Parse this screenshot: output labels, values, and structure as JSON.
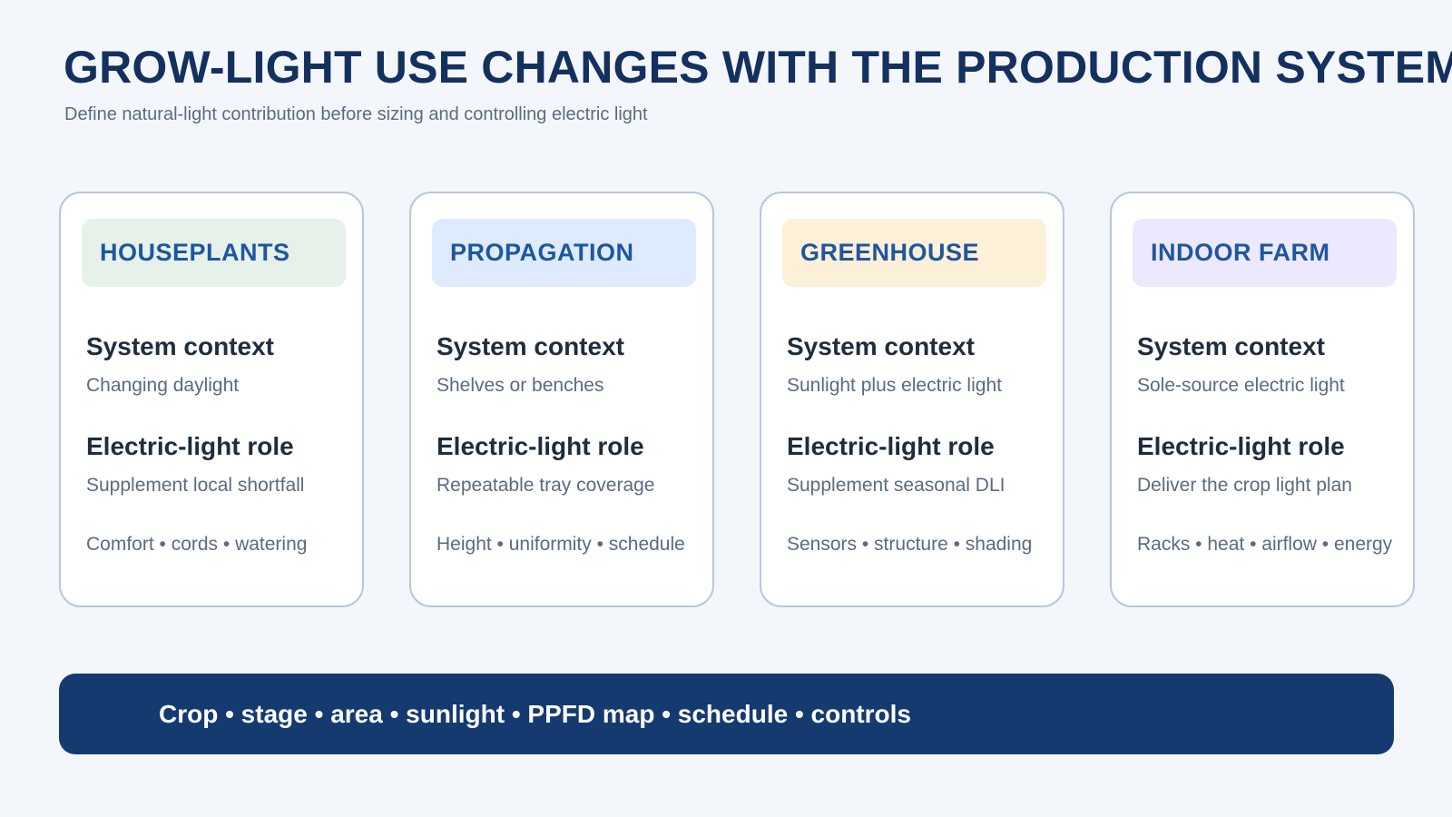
{
  "title": "GROW-LIGHT USE CHANGES WITH THE PRODUCTION SYSTEM",
  "subtitle": "Define natural-light contribution before sizing and controlling electric light",
  "cards": [
    {
      "header": "HOUSEPLANTS",
      "header_bg": "#e6f1e9",
      "context_heading": "System context",
      "context_text": "Changing daylight",
      "role_heading": "Electric-light role",
      "role_text": "Supplement local shortfall",
      "tags": "Comfort • cords • watering"
    },
    {
      "header": "PROPAGATION",
      "header_bg": "#deebff",
      "context_heading": "System context",
      "context_text": "Shelves or benches",
      "role_heading": "Electric-light role",
      "role_text": "Repeatable tray coverage",
      "tags": "Height • uniformity • schedule"
    },
    {
      "header": "GREENHOUSE",
      "header_bg": "#fdf0d8",
      "context_heading": "System context",
      "context_text": "Sunlight plus electric light",
      "role_heading": "Electric-light role",
      "role_text": "Supplement seasonal DLI",
      "tags": "Sensors • structure • shading"
    },
    {
      "header": "INDOOR FARM",
      "header_bg": "#ece8fd",
      "context_heading": "System context",
      "context_text": "Sole-source electric light",
      "role_heading": "Electric-light role",
      "role_text": "Deliver the crop light plan",
      "tags": "Racks • heat • airflow • energy"
    }
  ],
  "banner": "Crop • stage • area • sunlight • PPFD map • schedule • controls"
}
